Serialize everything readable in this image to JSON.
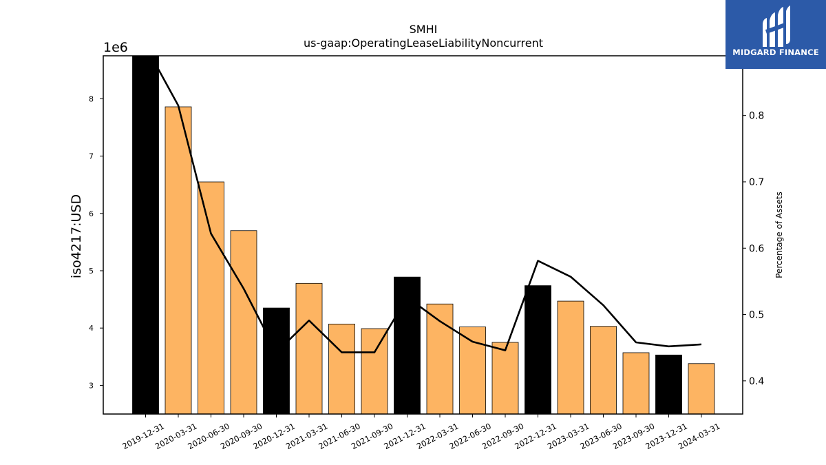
{
  "chart_data": {
    "type": "bar",
    "title": "SMHI",
    "subtitle": "us-gaap:OperatingLeaseLiabilityNoncurrent",
    "ylabel": "iso4217:USD",
    "y2label": "Percentage of Assets",
    "yscale_label": "1e6",
    "ylim": [
      2500000,
      8750000
    ],
    "y2lim": [
      0.35,
      0.89
    ],
    "yticks": [
      3,
      4,
      5,
      6,
      7,
      8
    ],
    "y2ticks": [
      0.4,
      0.5,
      0.6,
      0.7,
      0.8
    ],
    "categories": [
      "2019-12-31",
      "2020-03-31",
      "2020-06-30",
      "2020-09-30",
      "2020-12-31",
      "2021-03-31",
      "2021-06-30",
      "2021-09-30",
      "2021-12-31",
      "2022-03-31",
      "2022-06-30",
      "2022-09-30",
      "2022-12-31",
      "2023-03-31",
      "2023-06-30",
      "2023-09-30",
      "2023-12-31",
      "2024-03-31"
    ],
    "values": [
      8780000,
      7860000,
      6550000,
      5700000,
      4350000,
      4780000,
      4070000,
      3990000,
      4890000,
      4420000,
      4020000,
      3750000,
      4740000,
      4470000,
      4030000,
      3570000,
      3530000,
      3380000
    ],
    "bar_colors": [
      "#000000",
      "#fdb462",
      "#fdb462",
      "#fdb462",
      "#000000",
      "#fdb462",
      "#fdb462",
      "#fdb462",
      "#000000",
      "#fdb462",
      "#fdb462",
      "#fdb462",
      "#000000",
      "#fdb462",
      "#fdb462",
      "#fdb462",
      "#000000",
      "#fdb462"
    ],
    "line_values": [
      0.905,
      0.815,
      0.622,
      0.539,
      0.443,
      0.491,
      0.443,
      0.443,
      0.526,
      0.49,
      0.459,
      0.446,
      0.581,
      0.557,
      0.514,
      0.458,
      0.452,
      0.455
    ],
    "line_color": "#000000",
    "grid": false,
    "legend": "none"
  },
  "logo": {
    "text": "MIDGARD FINANCE",
    "background": "#2c5aa8"
  }
}
